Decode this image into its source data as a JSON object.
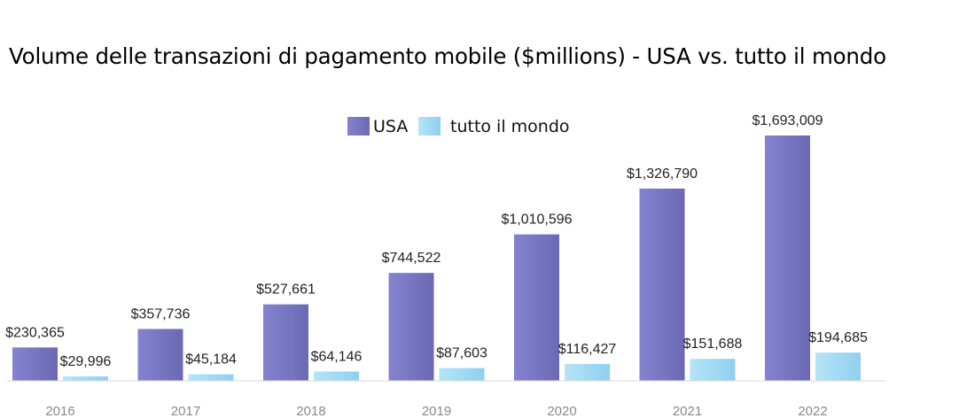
{
  "chart_data": {
    "type": "bar",
    "title": "Volume delle transazioni di pagamento mobile ($millions) - USA vs. tutto il mondo",
    "categories": [
      "2016",
      "2017",
      "2018",
      "2019",
      "2020",
      "2021",
      "2022"
    ],
    "series": [
      {
        "name": "USA",
        "color": "#7b78c6",
        "values": [
          230365,
          357736,
          527661,
          744522,
          1010596,
          1326790,
          1693009
        ],
        "labels": [
          "$230,365",
          "$357,736",
          "$527,661",
          "$744,522",
          "$1,010,596",
          "$1,326,790",
          "$1,693,009"
        ]
      },
      {
        "name": "tutto il mondo",
        "color": "#a5dbf2",
        "values": [
          29996,
          45184,
          64146,
          87603,
          116427,
          151688,
          194685
        ],
        "labels": [
          "$29,996",
          "$45,184",
          "$64,146",
          "$87,603",
          "$116,427",
          "$151,688",
          "$194,685"
        ]
      }
    ],
    "xlabel": "",
    "ylabel": "",
    "ylim": [
      0,
      1750000
    ],
    "grid": false,
    "legend_position": "top-center"
  }
}
